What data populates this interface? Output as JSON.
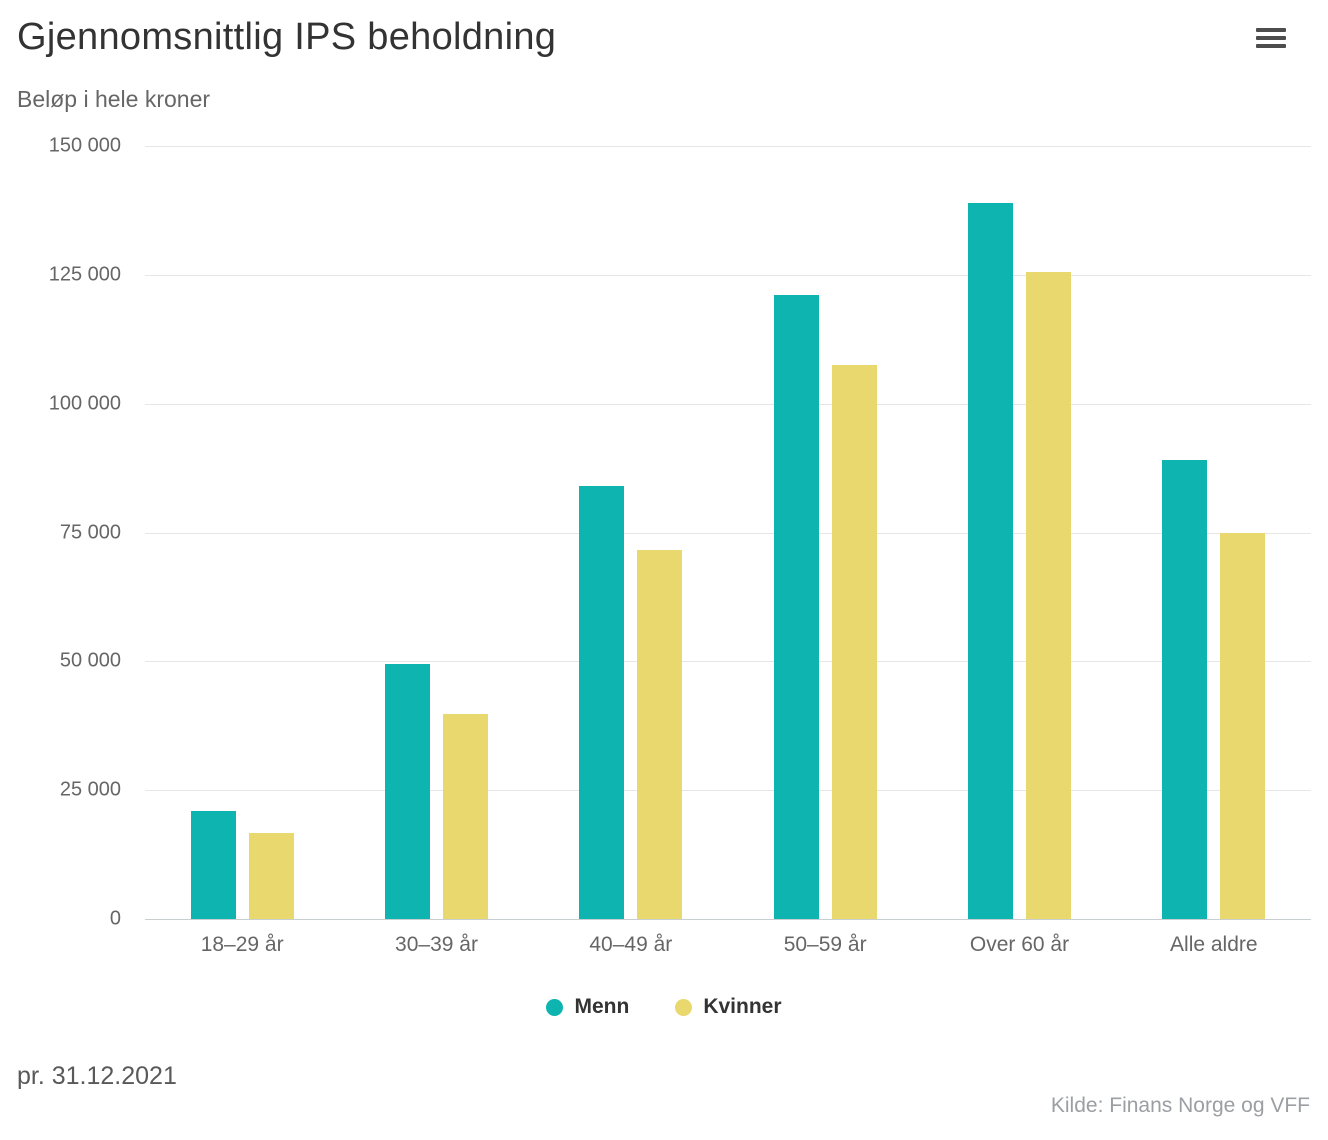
{
  "chart": {
    "title": "Gjennomsnittlig IPS beholdning",
    "subtitle": "Beløp i hele kroner",
    "context_menu_icon": "hamburger-icon"
  },
  "chart_data": {
    "type": "bar",
    "title": "Gjennomsnittlig IPS beholdning",
    "subtitle": "Beløp i hele kroner",
    "categories": [
      "18–29 år",
      "30–39 år",
      "40–49 år",
      "50–59 år",
      "Over 60 år",
      "Alle aldre"
    ],
    "series": [
      {
        "name": "Menn",
        "color": "#0db4b0",
        "values": [
          21000,
          49500,
          84000,
          121000,
          139000,
          89000
        ]
      },
      {
        "name": "Kvinner",
        "color": "#e8d86d",
        "values": [
          16700,
          39700,
          71700,
          107500,
          125500,
          75000
        ]
      }
    ],
    "xlabel": "",
    "ylabel": "",
    "ylim": [
      0,
      150000
    ],
    "ytick_step": 25000,
    "ytick_labels": [
      "150 000",
      "125 000",
      "100 000",
      "75 000",
      "50 000",
      "25 000",
      "0"
    ],
    "grid": true,
    "gridline_color": "#e6e6e6",
    "axis_line_color": "#c9ced1",
    "legend_position": "bottom-center"
  },
  "legend": {
    "items": [
      {
        "label": "Menn",
        "color": "#0db4b0"
      },
      {
        "label": "Kvinner",
        "color": "#e8d86d"
      }
    ]
  },
  "footer": {
    "date": "pr. 31.12.2021",
    "source": "Kilde: Finans Norge og VFF"
  }
}
